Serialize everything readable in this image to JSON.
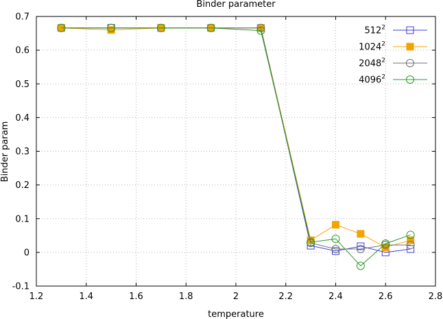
{
  "chart_data": {
    "type": "line",
    "title": "Binder parameter",
    "xlabel": "temperature",
    "ylabel": "Binder param",
    "xlim": [
      1.2,
      2.8
    ],
    "ylim": [
      -0.1,
      0.7
    ],
    "xticks": [
      "1.2",
      "1.4",
      "1.6",
      "1.8",
      "2",
      "2.2",
      "2.4",
      "2.6",
      "2.8"
    ],
    "yticks": [
      "-0.1",
      "0",
      "0.1",
      "0.2",
      "0.3",
      "0.4",
      "0.5",
      "0.6",
      "0.7"
    ],
    "grid": true,
    "legend_position": "top-right",
    "x": [
      1.3,
      1.5,
      1.7,
      1.9,
      2.1,
      2.3,
      2.4,
      2.5,
      2.6,
      2.7
    ],
    "series": [
      {
        "name": "512",
        "name_sup": "2",
        "color": "#3c3cdc",
        "marker": "square-open",
        "values": [
          0.666,
          0.666,
          0.666,
          0.666,
          0.666,
          0.02,
          0.004,
          0.018,
          0.0,
          0.01
        ]
      },
      {
        "name": "1024",
        "name_sup": "2",
        "color": "#f5a300",
        "marker": "square-filled",
        "values": [
          0.666,
          0.66,
          0.666,
          0.666,
          0.666,
          0.036,
          0.082,
          0.055,
          0.015,
          0.036
        ]
      },
      {
        "name": "2048",
        "name_sup": "2",
        "color": "#707070",
        "marker": "circle-open",
        "values": [
          0.666,
          0.666,
          0.666,
          0.666,
          0.666,
          0.028,
          0.01,
          0.01,
          0.022,
          0.022
        ]
      },
      {
        "name": "4096",
        "name_sup": "2",
        "color": "#2a9a2a",
        "marker": "circle-open",
        "values": [
          0.666,
          0.666,
          0.666,
          0.666,
          0.658,
          0.03,
          0.04,
          -0.04,
          0.026,
          0.052
        ]
      }
    ]
  }
}
